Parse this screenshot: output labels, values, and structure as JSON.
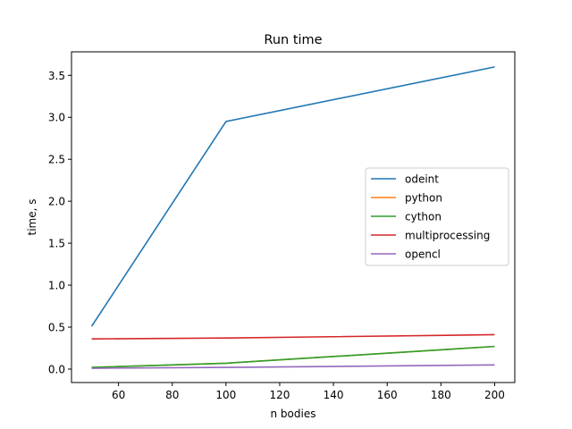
{
  "chart_data": {
    "type": "line",
    "title": "Run time",
    "xlabel": "n bodies",
    "ylabel": "time, s",
    "xlim": [
      42.5,
      207.5
    ],
    "ylim": [
      -0.16,
      3.78
    ],
    "xticks": [
      60,
      80,
      100,
      120,
      140,
      160,
      180,
      200
    ],
    "yticks": [
      0.0,
      0.5,
      1.0,
      1.5,
      2.0,
      2.5,
      3.0,
      3.5
    ],
    "ytick_labels": [
      "0.0",
      "0.5",
      "1.0",
      "1.5",
      "2.0",
      "2.5",
      "3.0",
      "3.5"
    ],
    "grid": false,
    "legend_position": "center-right",
    "x": [
      50,
      100,
      200
    ],
    "series": [
      {
        "name": "odeint",
        "color": "#1f77b4",
        "values": [
          0.51,
          2.95,
          3.6
        ]
      },
      {
        "name": "python",
        "color": "#ff7f0e",
        "values": [
          0.02,
          0.07,
          0.27
        ]
      },
      {
        "name": "cython",
        "color": "#2ca02c",
        "values": [
          0.02,
          0.07,
          0.27
        ]
      },
      {
        "name": "multiprocessing",
        "color": "#d62728",
        "values": [
          0.36,
          0.37,
          0.41
        ]
      },
      {
        "name": "opencl",
        "color": "#9467bd",
        "values": [
          0.01,
          0.02,
          0.05
        ]
      }
    ]
  }
}
